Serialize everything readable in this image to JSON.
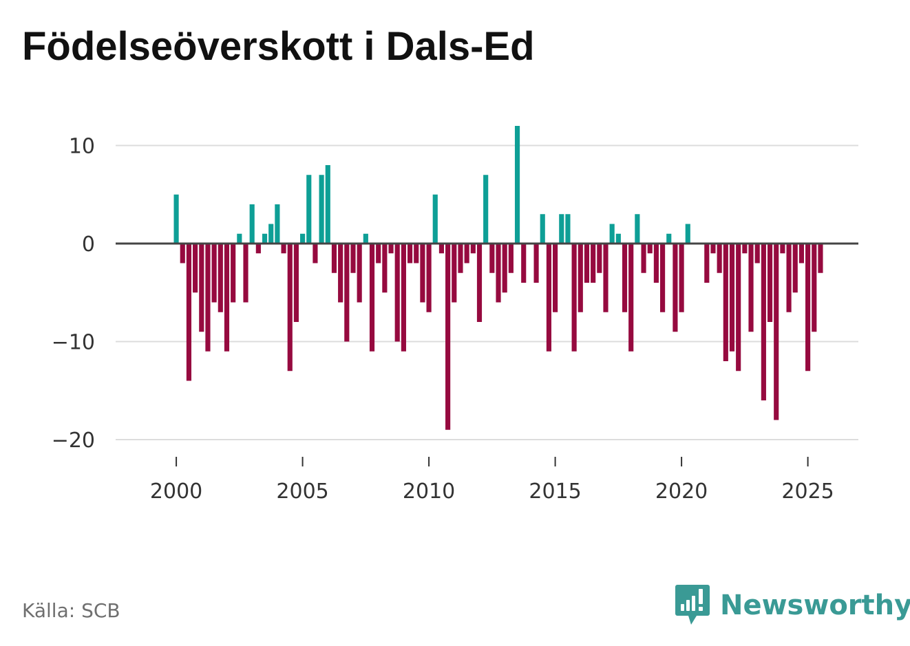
{
  "title": "Födelseöverskott i Dals-Ed",
  "source": "Källa: SCB",
  "brand": {
    "name": "Newsworthy"
  },
  "colors": {
    "positive": "#0e9f96",
    "negative": "#960a3f",
    "zero_line": "#444444",
    "grid": "#dcdcdc",
    "brand": "#3a9a95"
  },
  "chart_data": {
    "type": "bar",
    "title": "Födelseöverskott i Dals-Ed",
    "xlabel": "",
    "ylabel": "",
    "ylim": [
      -22,
      13
    ],
    "xlim": [
      1997.6,
      2027.0
    ],
    "y_ticks": [
      10,
      0,
      -10,
      -20
    ],
    "y_tick_labels": [
      "10",
      "0",
      "−10",
      "−20"
    ],
    "x_ticks": [
      2000,
      2005,
      2010,
      2015,
      2020,
      2025
    ],
    "x_tick_labels": [
      "2000",
      "2005",
      "2010",
      "2015",
      "2020",
      "2025"
    ],
    "grid": true,
    "frequency": "quarterly",
    "start_year": 2000,
    "values": [
      5,
      -2,
      -14,
      -5,
      -9,
      -11,
      -6,
      -7,
      -11,
      -6,
      1,
      -6,
      4,
      -1,
      1,
      2,
      4,
      -1,
      -13,
      -8,
      1,
      7,
      -2,
      7,
      8,
      -3,
      -6,
      -10,
      -3,
      -6,
      1,
      -11,
      -2,
      -5,
      -1,
      -10,
      -11,
      -2,
      -2,
      -6,
      -7,
      5,
      -1,
      -19,
      -6,
      -3,
      -2,
      -1,
      -8,
      7,
      -3,
      -6,
      -5,
      -3,
      12,
      -4,
      0,
      -4,
      3,
      -11,
      -7,
      3,
      3,
      -11,
      -7,
      -4,
      -4,
      -3,
      -7,
      2,
      1,
      -7,
      -11,
      3,
      -3,
      -1,
      -4,
      -7,
      1,
      -9,
      -7,
      2,
      0,
      0,
      -4,
      -1,
      -3,
      -12,
      -11,
      -13,
      -1,
      -9,
      -2,
      -16,
      -8,
      -18,
      -1,
      -7,
      -5,
      -2,
      -13,
      -9,
      -3
    ]
  }
}
